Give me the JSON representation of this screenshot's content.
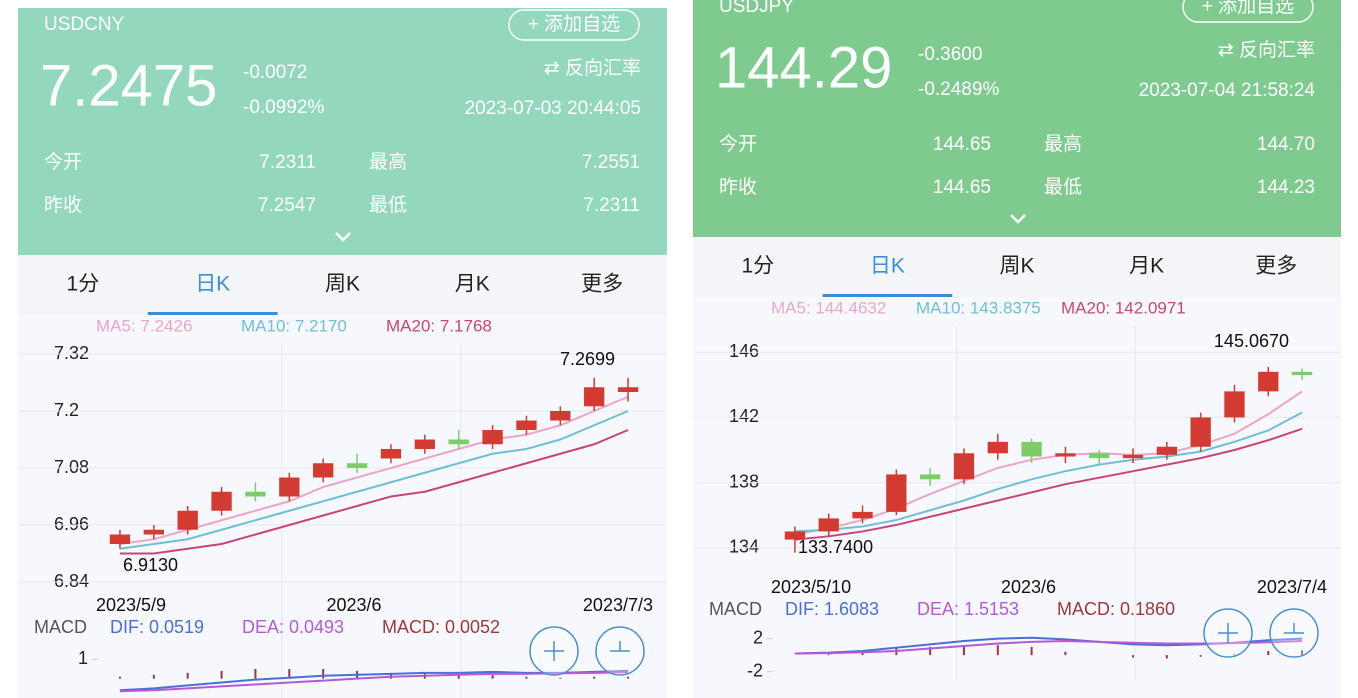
{
  "panels": [
    {
      "symbol": "USDCNY",
      "add_button": "+ 添加自选",
      "price": "7.2475",
      "change": "-0.0072",
      "change_pct": "-0.0992%",
      "reverse": "⇄ 反向汇率",
      "time": "2023-07-03 20:44:05",
      "color": "#93d8bd",
      "stats": [
        {
          "label": "今开",
          "value": "7.2311"
        },
        {
          "label": "最高",
          "value": "7.2551"
        },
        {
          "label": "昨收",
          "value": "7.2547"
        },
        {
          "label": "最低",
          "value": "7.2311"
        }
      ],
      "tabs": [
        "1分",
        "日K",
        "周K",
        "月K",
        "更多"
      ],
      "active_tab": 1,
      "chart_data": {
        "type": "candlestick",
        "ylim": [
          6.84,
          7.32
        ],
        "yticks": [
          6.84,
          6.96,
          7.08,
          7.2,
          7.32
        ],
        "x_labels": [
          "2023/5/9",
          "2023/6",
          "2023/7/3"
        ],
        "max_label": "7.2699",
        "min_label": "6.9130",
        "open": [
          6.92,
          6.94,
          6.95,
          6.99,
          7.03,
          7.02,
          7.06,
          7.09,
          7.1,
          7.12,
          7.14,
          7.13,
          7.16,
          7.18,
          7.21,
          7.24
        ],
        "close": [
          6.94,
          6.95,
          6.99,
          7.03,
          7.02,
          7.06,
          7.09,
          7.08,
          7.12,
          7.14,
          7.13,
          7.16,
          7.18,
          7.2,
          7.25,
          7.25
        ],
        "high": [
          6.95,
          6.96,
          7.0,
          7.04,
          7.05,
          7.07,
          7.1,
          7.11,
          7.13,
          7.15,
          7.16,
          7.17,
          7.19,
          7.21,
          7.27,
          7.27
        ],
        "low": [
          6.91,
          6.93,
          6.94,
          6.98,
          7.01,
          7.01,
          7.05,
          7.07,
          7.09,
          7.11,
          7.12,
          7.12,
          7.15,
          7.17,
          7.2,
          7.22
        ],
        "series": [
          {
            "name": "MA5: 7.2426",
            "color": "#eaa6c9",
            "values": [
              6.92,
              6.93,
              6.95,
              6.97,
              6.99,
              7.01,
              7.04,
              7.06,
              7.08,
              7.1,
              7.12,
              7.14,
              7.15,
              7.17,
              7.2,
              7.23
            ]
          },
          {
            "name": "MA10: 7.2170",
            "color": "#6fbfd6",
            "values": [
              6.91,
              6.92,
              6.93,
              6.95,
              6.97,
              6.99,
              7.01,
              7.03,
              7.05,
              7.07,
              7.09,
              7.11,
              7.12,
              7.14,
              7.17,
              7.2
            ]
          },
          {
            "name": "MA20: 7.1768",
            "color": "#c8457a",
            "values": [
              6.9,
              6.9,
              6.91,
              6.92,
              6.94,
              6.96,
              6.98,
              7.0,
              7.02,
              7.03,
              7.05,
              7.07,
              7.09,
              7.11,
              7.13,
              7.16
            ]
          }
        ],
        "macd": {
          "label": "MACD",
          "ylim": [
            -1,
            2
          ],
          "yticks": [
            1
          ],
          "series": [
            {
              "name": "DIF: 0.0519",
              "color": "#4a6fd6",
              "values": [
                -0.6,
                -0.5,
                -0.35,
                -0.2,
                -0.05,
                0.05,
                0.15,
                0.2,
                0.25,
                0.3,
                0.3,
                0.35,
                0.3,
                0.3,
                0.35,
                0.4
              ]
            },
            {
              "name": "DEA: 0.0493",
              "color": "#b45ad6",
              "values": [
                -0.65,
                -0.6,
                -0.5,
                -0.4,
                -0.3,
                -0.2,
                -0.1,
                0.0,
                0.1,
                0.15,
                0.2,
                0.25,
                0.25,
                0.28,
                0.3,
                0.33
              ]
            }
          ],
          "hist": {
            "name": "MACD: 0.0052",
            "color": "#9b3a3a",
            "values": [
              0.1,
              0.2,
              0.3,
              0.4,
              0.5,
              0.5,
              0.5,
              0.4,
              0.3,
              0.3,
              0.2,
              0.2,
              0.1,
              0.05,
              0.1,
              0.1
            ]
          }
        }
      }
    },
    {
      "symbol": "USDJPY",
      "add_button": "+ 添加自选",
      "price": "144.29",
      "change": "-0.3600",
      "change_pct": "-0.2489%",
      "reverse": "⇄ 反向汇率",
      "time": "2023-07-04 21:58:24",
      "color": "#7fcb8f",
      "stats": [
        {
          "label": "今开",
          "value": "144.65"
        },
        {
          "label": "最高",
          "value": "144.70"
        },
        {
          "label": "昨收",
          "value": "144.65"
        },
        {
          "label": "最低",
          "value": "144.23"
        }
      ],
      "tabs": [
        "1分",
        "日K",
        "周K",
        "月K",
        "更多"
      ],
      "active_tab": 1,
      "chart_data": {
        "type": "candlestick",
        "ylim": [
          133,
          147
        ],
        "yticks": [
          134,
          138,
          142,
          146
        ],
        "x_labels": [
          "2023/5/10",
          "2023/6",
          "2023/7/4"
        ],
        "max_label": "145.0670",
        "min_label": "133.7400",
        "open": [
          134.5,
          135.0,
          135.8,
          136.2,
          138.5,
          138.2,
          139.8,
          140.5,
          139.6,
          139.8,
          139.5,
          139.7,
          140.2,
          142.0,
          143.6,
          144.8
        ],
        "close": [
          135.0,
          135.8,
          136.2,
          138.5,
          138.2,
          139.8,
          140.5,
          139.6,
          139.8,
          139.5,
          139.7,
          140.2,
          142.0,
          143.6,
          144.8,
          144.6
        ],
        "high": [
          135.3,
          136.1,
          136.6,
          138.8,
          138.9,
          140.1,
          141.0,
          140.7,
          140.2,
          140.0,
          140.1,
          140.5,
          142.3,
          144.0,
          145.1,
          145.0
        ],
        "low": [
          133.7,
          134.7,
          135.5,
          136.0,
          137.8,
          137.9,
          139.4,
          139.2,
          139.2,
          139.1,
          139.2,
          139.4,
          139.9,
          141.7,
          143.3,
          144.3
        ],
        "series": [
          {
            "name": "MA5: 144.4632",
            "color": "#eaa6c9",
            "values": [
              134.8,
              135.2,
              135.7,
              136.4,
              137.3,
              138.1,
              138.9,
              139.4,
              139.7,
              139.8,
              139.7,
              139.8,
              140.3,
              141.0,
              142.2,
              143.6
            ]
          },
          {
            "name": "MA10: 143.8375",
            "color": "#6fbfd6",
            "values": [
              135.0,
              135.1,
              135.3,
              135.7,
              136.3,
              136.9,
              137.6,
              138.2,
              138.7,
              139.1,
              139.4,
              139.6,
              139.9,
              140.5,
              141.2,
              142.3
            ]
          },
          {
            "name": "MA20: 142.0971",
            "color": "#c8457a",
            "values": [
              134.5,
              134.7,
              135.0,
              135.4,
              135.9,
              136.4,
              136.9,
              137.4,
              137.9,
              138.3,
              138.7,
              139.1,
              139.5,
              140.0,
              140.6,
              141.3
            ]
          }
        ],
        "macd": {
          "label": "MACD",
          "ylim": [
            -3,
            4
          ],
          "yticks": [
            2,
            -2
          ],
          "series": [
            {
              "name": "DIF: 1.6083",
              "color": "#4a6fd6",
              "values": [
                0.2,
                0.3,
                0.5,
                0.9,
                1.3,
                1.7,
                2.0,
                2.1,
                1.9,
                1.6,
                1.3,
                1.2,
                1.3,
                1.5,
                1.8,
                2.0
              ]
            },
            {
              "name": "DEA: 1.5153",
              "color": "#b45ad6",
              "values": [
                0.2,
                0.25,
                0.35,
                0.5,
                0.8,
                1.1,
                1.4,
                1.6,
                1.7,
                1.6,
                1.5,
                1.4,
                1.4,
                1.45,
                1.55,
                1.7
              ]
            },
            {
              "name": "MACD: 0.1860",
              "color": "#9b3a3a",
              "values": []
            }
          ],
          "hist": {
            "name": "MACD: 0.1860",
            "color": "#9b3a3a",
            "values": [
              0.0,
              0.1,
              0.3,
              0.8,
              1.0,
              1.2,
              1.2,
              1.0,
              0.4,
              0.0,
              -0.3,
              -0.4,
              -0.2,
              0.1,
              0.5,
              0.6
            ]
          }
        }
      }
    }
  ]
}
